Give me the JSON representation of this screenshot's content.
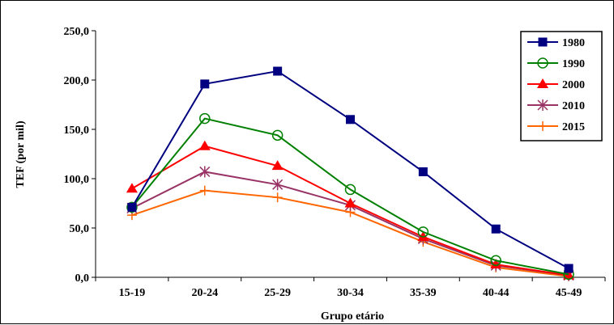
{
  "chart_data": {
    "type": "line",
    "title": "",
    "xlabel": "Grupo etário",
    "ylabel": "TEF (por mil)",
    "categories": [
      "15-19",
      "20-24",
      "25-29",
      "30-34",
      "35-39",
      "40-44",
      "45-49"
    ],
    "ylim": [
      0,
      250
    ],
    "yticks": [
      0,
      50,
      100,
      150,
      200,
      250
    ],
    "ytick_labels": [
      "0,0",
      "50,0",
      "100,0",
      "150,0",
      "200,0",
      "250,0"
    ],
    "grid": false,
    "legend_position": "top-right",
    "series": [
      {
        "name": "1980",
        "color": "#000080",
        "marker": "square-filled",
        "values": [
          71,
          196,
          209,
          160,
          107,
          49,
          9
        ]
      },
      {
        "name": "1990",
        "color": "#008000",
        "marker": "circle-open",
        "values": [
          71,
          161,
          144,
          89,
          46,
          17,
          3
        ]
      },
      {
        "name": "2000",
        "color": "#ff0000",
        "marker": "triangle-filled",
        "values": [
          90,
          133,
          113,
          75,
          41,
          13,
          2
        ]
      },
      {
        "name": "2010",
        "color": "#993366",
        "marker": "star-asterisk",
        "values": [
          70,
          107,
          94,
          73,
          39,
          12,
          2
        ]
      },
      {
        "name": "2015",
        "color": "#ff6600",
        "marker": "plus",
        "values": [
          63,
          88,
          81,
          66,
          36,
          10,
          1
        ]
      }
    ]
  }
}
